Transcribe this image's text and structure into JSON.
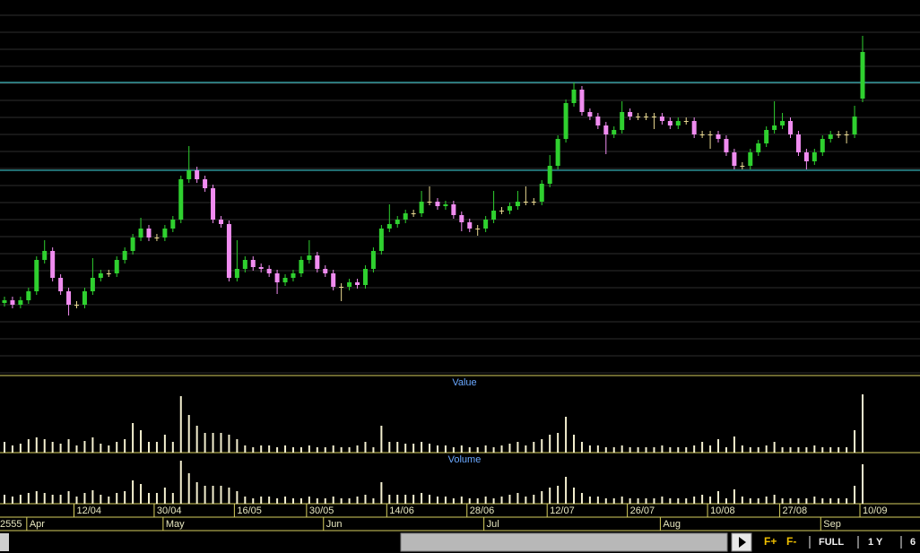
{
  "chart_data": {
    "type": "candlestick",
    "categories": [
      null,
      null,
      null,
      null,
      null,
      null,
      null,
      null,
      null,
      "12/04",
      null,
      null,
      null,
      null,
      null,
      null,
      null,
      null,
      null,
      "30/04",
      null,
      null,
      null,
      null,
      null,
      null,
      null,
      null,
      null,
      "16/05",
      null,
      null,
      null,
      null,
      null,
      null,
      null,
      null,
      "30/05",
      null,
      null,
      null,
      null,
      null,
      null,
      null,
      null,
      null,
      "14/06",
      null,
      null,
      null,
      null,
      null,
      null,
      null,
      null,
      null,
      "28/06",
      null,
      null,
      null,
      null,
      null,
      null,
      null,
      null,
      null,
      "12/07",
      null,
      null,
      null,
      null,
      null,
      null,
      null,
      null,
      null,
      "26/07",
      null,
      null,
      null,
      null,
      null,
      null,
      null,
      null,
      null,
      "10/08",
      null,
      null,
      null,
      null,
      null,
      null,
      null,
      null,
      "27/08",
      null,
      null,
      null,
      null,
      null,
      null,
      null,
      null,
      null,
      "10/09"
    ],
    "month_labels": [
      null,
      null,
      null,
      "Apr",
      null,
      null,
      null,
      null,
      null,
      null,
      null,
      null,
      null,
      null,
      null,
      null,
      null,
      null,
      null,
      null,
      "May",
      null,
      null,
      null,
      null,
      null,
      null,
      null,
      null,
      null,
      null,
      null,
      null,
      null,
      null,
      null,
      null,
      null,
      null,
      null,
      "Jun",
      null,
      null,
      null,
      null,
      null,
      null,
      null,
      null,
      null,
      null,
      null,
      null,
      null,
      null,
      null,
      null,
      null,
      null,
      null,
      "Jul",
      null,
      null,
      null,
      null,
      null,
      null,
      null,
      null,
      null,
      null,
      null,
      null,
      null,
      null,
      null,
      null,
      null,
      null,
      null,
      null,
      null,
      "Aug",
      null,
      null,
      null,
      null,
      null,
      null,
      null,
      null,
      null,
      null,
      null,
      null,
      null,
      null,
      null,
      null,
      null,
      null,
      null,
      "Sep",
      null,
      null,
      null,
      null,
      null
    ],
    "year": "2555",
    "open": [
      80,
      83,
      78,
      83,
      93,
      128,
      138,
      108,
      93,
      78,
      78,
      93,
      108,
      113,
      113,
      128,
      138,
      153,
      163,
      153,
      153,
      163,
      173,
      218,
      228,
      218,
      208,
      173,
      168,
      108,
      118,
      128,
      120,
      118,
      113,
      103,
      108,
      113,
      128,
      133,
      118,
      113,
      98,
      98,
      103,
      100,
      118,
      138,
      163,
      168,
      173,
      180,
      180,
      193,
      193,
      188,
      190,
      178,
      170,
      163,
      163,
      173,
      183,
      183,
      188,
      193,
      193,
      193,
      213,
      233,
      263,
      303,
      318,
      293,
      288,
      278,
      268,
      273,
      293,
      288,
      288,
      288,
      288,
      283,
      278,
      283,
      283,
      268,
      268,
      268,
      263,
      248,
      233,
      233,
      248,
      258,
      273,
      278,
      283,
      268,
      248,
      238,
      248,
      263,
      268,
      268,
      268,
      308
    ],
    "high": [
      87,
      87,
      87,
      97,
      132,
      150,
      142,
      112,
      97,
      82,
      97,
      130,
      117,
      117,
      132,
      142,
      157,
      175,
      167,
      157,
      167,
      177,
      222,
      255,
      232,
      222,
      212,
      177,
      172,
      150,
      132,
      132,
      124,
      122,
      117,
      112,
      117,
      132,
      150,
      137,
      122,
      117,
      102,
      107,
      107,
      122,
      142,
      167,
      190,
      177,
      184,
      184,
      205,
      210,
      197,
      194,
      194,
      182,
      174,
      167,
      177,
      205,
      187,
      192,
      205,
      210,
      197,
      217,
      245,
      267,
      307,
      326,
      322,
      297,
      292,
      282,
      277,
      305,
      297,
      292,
      292,
      292,
      292,
      287,
      287,
      287,
      287,
      272,
      272,
      272,
      267,
      252,
      237,
      252,
      262,
      277,
      305,
      292,
      287,
      272,
      252,
      252,
      267,
      272,
      272,
      272,
      300,
      378
    ],
    "low": [
      76,
      74,
      74,
      79,
      89,
      124,
      104,
      89,
      66,
      74,
      74,
      89,
      104,
      109,
      109,
      124,
      134,
      149,
      149,
      149,
      149,
      159,
      169,
      214,
      214,
      204,
      169,
      164,
      104,
      104,
      114,
      116,
      114,
      109,
      90,
      99,
      104,
      109,
      124,
      114,
      109,
      94,
      82,
      94,
      96,
      96,
      114,
      134,
      159,
      164,
      169,
      176,
      176,
      189,
      184,
      184,
      174,
      160,
      159,
      155,
      159,
      169,
      179,
      179,
      184,
      189,
      189,
      189,
      209,
      229,
      259,
      299,
      289,
      284,
      274,
      246,
      264,
      269,
      284,
      284,
      284,
      274,
      279,
      274,
      274,
      279,
      264,
      264,
      252,
      259,
      244,
      229,
      229,
      229,
      244,
      254,
      269,
      274,
      264,
      244,
      229,
      234,
      244,
      259,
      264,
      258,
      264,
      304
    ],
    "close": [
      83,
      78,
      83,
      93,
      128,
      138,
      108,
      93,
      78,
      78,
      93,
      108,
      113,
      113,
      128,
      138,
      153,
      163,
      153,
      153,
      163,
      173,
      218,
      228,
      218,
      208,
      173,
      168,
      108,
      118,
      128,
      120,
      118,
      113,
      103,
      108,
      113,
      128,
      133,
      118,
      113,
      98,
      98,
      103,
      100,
      118,
      138,
      163,
      168,
      173,
      180,
      180,
      193,
      193,
      188,
      190,
      178,
      170,
      163,
      163,
      173,
      183,
      183,
      188,
      193,
      193,
      193,
      213,
      233,
      263,
      303,
      318,
      293,
      288,
      278,
      268,
      273,
      293,
      288,
      288,
      288,
      288,
      283,
      278,
      283,
      283,
      268,
      268,
      268,
      263,
      248,
      233,
      233,
      248,
      258,
      273,
      278,
      283,
      268,
      248,
      238,
      248,
      263,
      268,
      268,
      268,
      288,
      360
    ],
    "up_color": "#2fd02f",
    "down_color": "#f08cf0",
    "flat_color": "#e8d890",
    "ylim": [
      0,
      418
    ],
    "levels": [
      326,
      228
    ],
    "level_color": "#40d8e0",
    "panels": [
      {
        "type": "bar",
        "title": "Value",
        "color": "#f4f0d0",
        "ylim": [
          0,
          80
        ],
        "values": [
          12,
          8,
          10,
          15,
          17,
          15,
          12,
          10,
          15,
          8,
          13,
          17,
          10,
          8,
          12,
          15,
          33,
          25,
          12,
          12,
          20,
          12,
          63,
          42,
          30,
          22,
          22,
          22,
          20,
          15,
          8,
          6,
          8,
          8,
          6,
          8,
          6,
          6,
          8,
          6,
          6,
          8,
          6,
          6,
          8,
          12,
          6,
          30,
          12,
          12,
          10,
          10,
          12,
          10,
          8,
          8,
          6,
          8,
          6,
          6,
          8,
          6,
          8,
          10,
          12,
          8,
          12,
          15,
          20,
          22,
          40,
          20,
          12,
          8,
          8,
          6,
          6,
          8,
          6,
          6,
          6,
          6,
          8,
          6,
          6,
          6,
          8,
          12,
          8,
          15,
          6,
          18,
          8,
          6,
          6,
          8,
          12,
          6,
          6,
          6,
          6,
          8,
          6,
          6,
          6,
          6,
          25,
          65
        ]
      },
      {
        "type": "bar",
        "title": "Volume",
        "color": "#f4f0d0",
        "ylim": [
          0,
          60
        ],
        "values": [
          10,
          8,
          10,
          12,
          14,
          12,
          10,
          10,
          14,
          8,
          12,
          15,
          10,
          8,
          12,
          14,
          26,
          22,
          12,
          12,
          18,
          12,
          48,
          34,
          24,
          20,
          20,
          20,
          18,
          14,
          8,
          6,
          8,
          8,
          6,
          8,
          6,
          6,
          8,
          6,
          6,
          8,
          6,
          6,
          8,
          10,
          6,
          24,
          10,
          10,
          10,
          10,
          12,
          10,
          8,
          8,
          6,
          8,
          6,
          6,
          8,
          6,
          8,
          10,
          12,
          8,
          10,
          14,
          18,
          20,
          30,
          18,
          12,
          8,
          8,
          6,
          6,
          8,
          6,
          6,
          6,
          6,
          8,
          6,
          6,
          6,
          8,
          10,
          8,
          14,
          6,
          16,
          8,
          6,
          6,
          8,
          10,
          6,
          6,
          6,
          6,
          8,
          6,
          6,
          6,
          6,
          20,
          44
        ]
      }
    ]
  },
  "toolbar": {
    "buttons": [
      "F+",
      "F-",
      "FULL",
      "1 Y",
      "6"
    ]
  }
}
